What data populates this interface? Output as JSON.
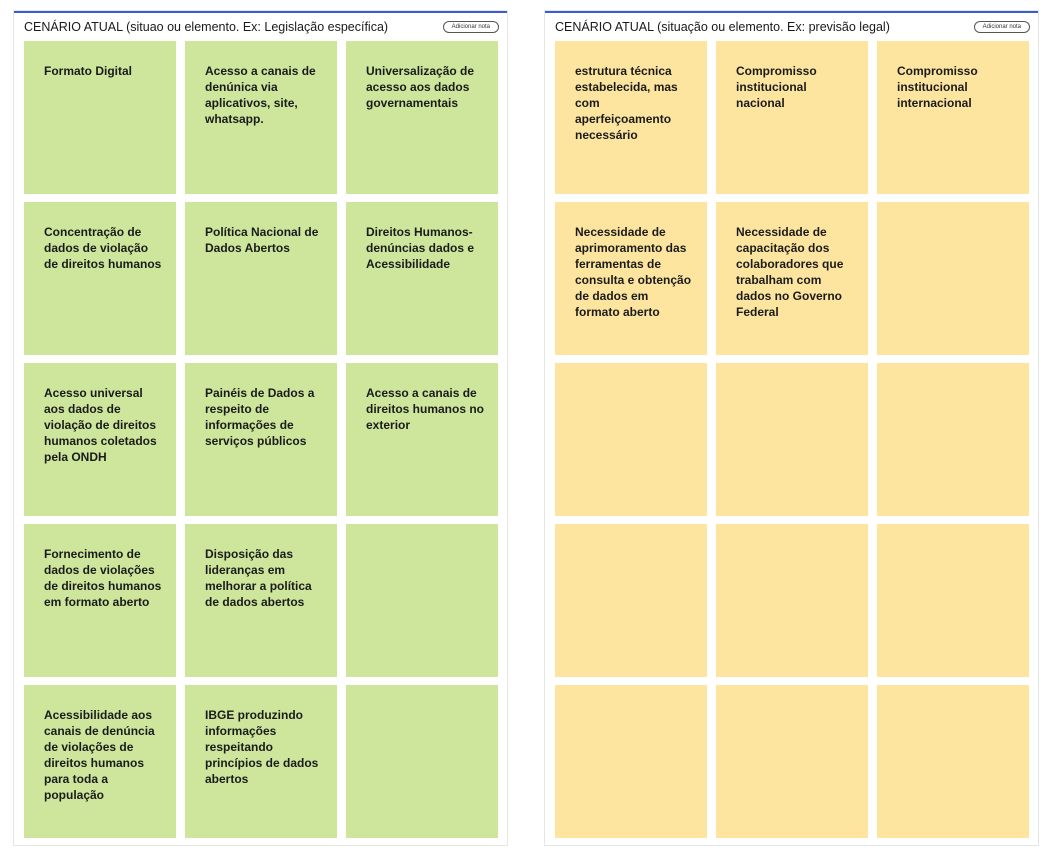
{
  "panels": [
    {
      "id": "left",
      "title": "CENÁRIO ATUAL (situao ou elemento. Ex: Legislação específica)",
      "add_note_label": "Adicionar nota",
      "note_color": "#cde69c",
      "notes": [
        "Formato Digital",
        "Acesso a canais de denúnica via aplicativos, site, whatsapp.",
        "Universalização de acesso aos dados governamentais",
        "Concentração de dados de violação de direitos humanos",
        "Política Nacional de Dados Abertos",
        "Direitos Humanos-denúncias dados e Acessibilidade",
        "Acesso universal aos dados de violação de direitos humanos coletados pela ONDH",
        "Painéis de Dados a respeito de informações de serviços públicos",
        "Acesso a canais de direitos humanos no exterior",
        "Fornecimento de dados de violações de direitos humanos em formato aberto",
        "Disposição das lideranças em melhorar a política de dados abertos",
        "",
        "Acessibilidade aos canais de denúncia de violações de direitos humanos para toda a população",
        "IBGE produzindo informações respeitando princípios de dados abertos",
        ""
      ]
    },
    {
      "id": "right",
      "title": "CENÁRIO ATUAL (situação ou elemento. Ex: previsão legal)",
      "add_note_label": "Adicionar nota",
      "note_color": "#fde59f",
      "notes": [
        "estrutura técnica estabelecida, mas com aperfeiçoamento necessário",
        "Compromisso institucional nacional",
        "Compromisso institucional internacional",
        "Necessidade de aprimoramento das ferramentas de consulta e obtenção de dados em formato aberto",
        "Necessidade de capacitação dos colaboradores que trabalham com dados no Governo Federal",
        "",
        "",
        "",
        "",
        "",
        "",
        "",
        "",
        "",
        ""
      ]
    }
  ]
}
